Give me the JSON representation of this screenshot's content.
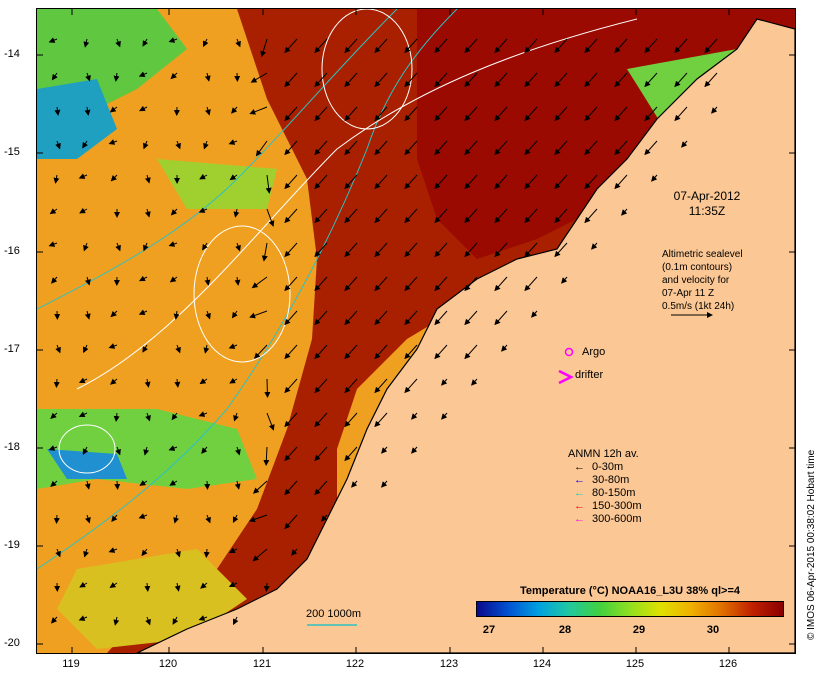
{
  "map": {
    "timestamp_date": "07-Apr-2012",
    "timestamp_time": "11:35Z",
    "sealevel_note": [
      "Altimetric sealevel",
      "(0.1m contours)",
      "and velocity for",
      "07-Apr 11 Z",
      "0.5m/s (1kt 24h)"
    ],
    "argo_label": "Argo",
    "drifter_label": "drifter",
    "depth_contour_label": "200  1000m",
    "credit": "© IMOS 06-Apr-2015 00:38:02 Hobart time",
    "y_ticks": [
      "-14",
      "-15",
      "-16",
      "-17",
      "-18",
      "-19",
      "-20"
    ],
    "x_ticks": [
      "119",
      "120",
      "121",
      "122",
      "123",
      "124",
      "125",
      "126"
    ]
  },
  "legend": {
    "title": "ANMN 12h av.",
    "items": [
      {
        "label": "0-30m",
        "color": "#000000"
      },
      {
        "label": "30-80m",
        "color": "#0000ff"
      },
      {
        "label": "80-150m",
        "color": "#00d0d0"
      },
      {
        "label": "150-300m",
        "color": "#ff0000"
      },
      {
        "label": "300-600m",
        "color": "#ff00ff"
      }
    ]
  },
  "colorbar": {
    "title": "Temperature (°C) NOAA16_L3U 38% ql>=4",
    "ticks": [
      "27",
      "28",
      "29",
      "30"
    ],
    "colors": [
      "#0a0a8c",
      "#0050d0",
      "#00a0e0",
      "#20c8a0",
      "#40d040",
      "#90e020",
      "#e0e000",
      "#f0b000",
      "#e07000",
      "#c02000",
      "#8a0000"
    ]
  }
}
